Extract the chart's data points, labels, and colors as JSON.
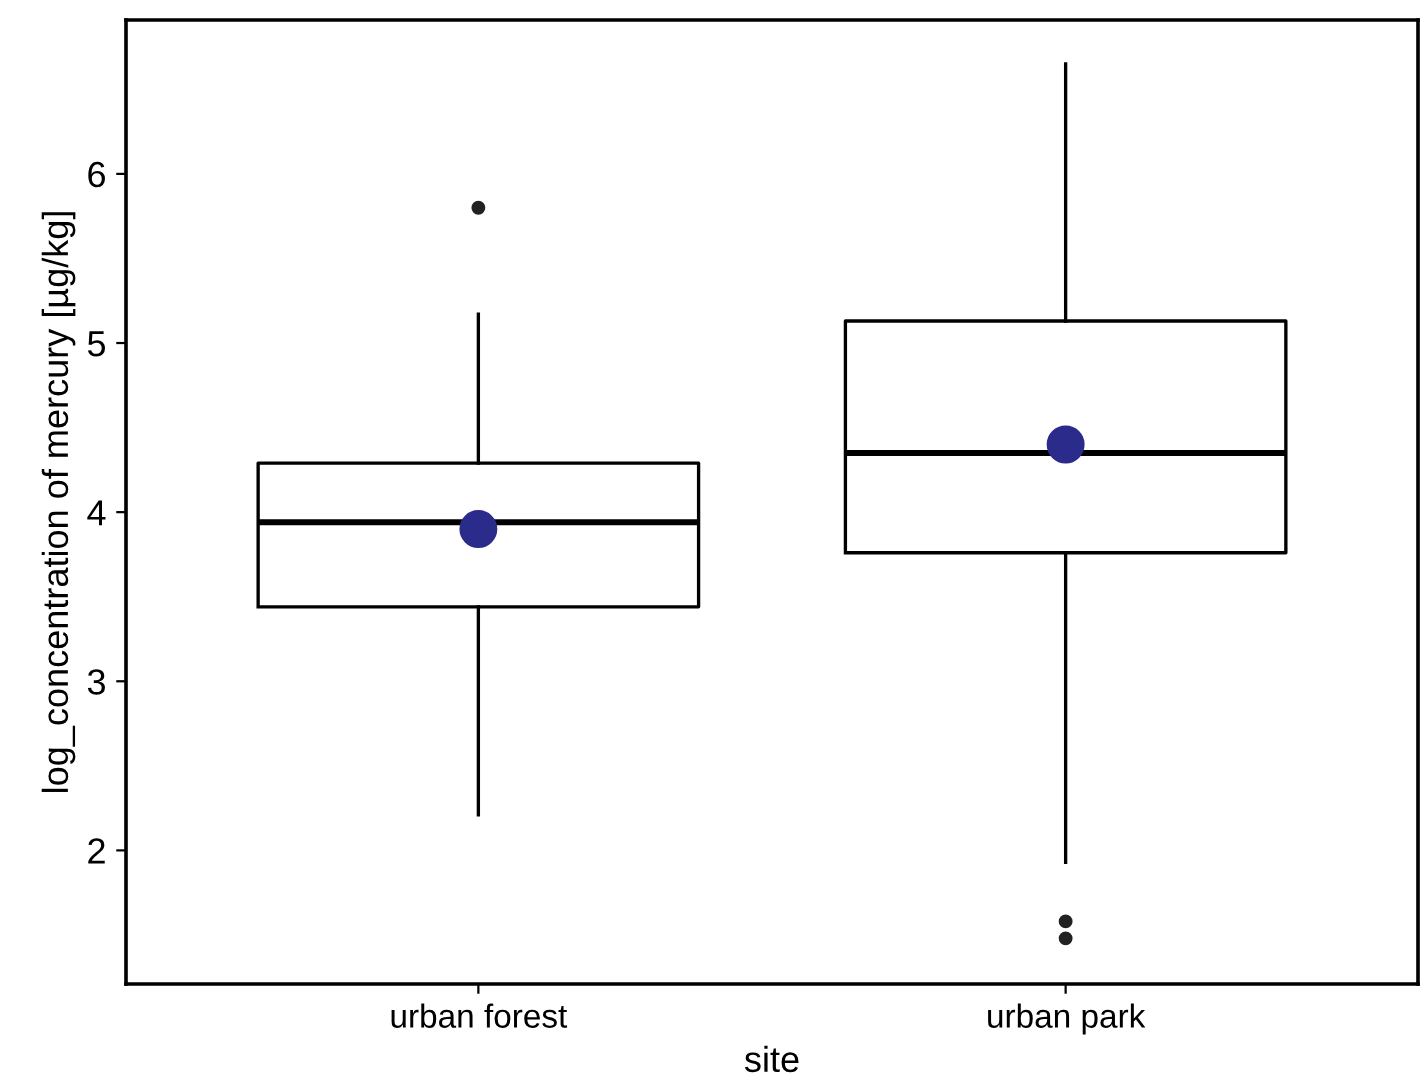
{
  "chart_data": {
    "type": "box",
    "xlabel": "site",
    "ylabel": "log_concentration of mercury [µg/kg]",
    "categories": [
      "urban forest",
      "urban park"
    ],
    "ylim": [
      1.21,
      6.91
    ],
    "yticks": [
      2,
      3,
      4,
      5,
      6
    ],
    "grid": false,
    "series": [
      {
        "color": "#000000",
        "boxes": [
          {
            "low": 2.21,
            "q1": 3.44,
            "median": 3.94,
            "q3": 4.29,
            "high": 5.17,
            "outliers": [
              5.8
            ]
          },
          {
            "low": 1.93,
            "q1": 3.76,
            "median": 4.35,
            "q3": 5.13,
            "high": 6.65,
            "outliers": [
              1.58,
              1.48
            ]
          }
        ]
      },
      {
        "type": "scatter",
        "x": [
          "urban forest",
          "urban park"
        ],
        "values": [
          3.9,
          4.4
        ],
        "color": "#2b2b8c",
        "marker": "circle"
      }
    ]
  }
}
